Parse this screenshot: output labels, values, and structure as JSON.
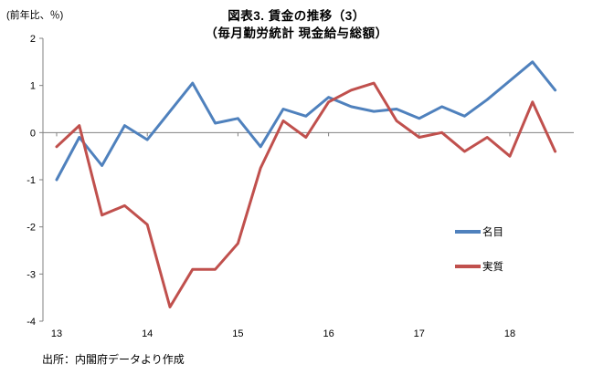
{
  "chart_data": {
    "type": "line",
    "title_line1": "図表3. 賃金の推移（3）",
    "title_line2": "（毎月勤労統計 現金給与総額）",
    "unit_label": "(前年比、％)",
    "source": "出所：内閣府データより作成",
    "x_start_year": 13,
    "x_step_years": 0.25,
    "x_tick_labels": [
      "13",
      "14",
      "15",
      "16",
      "17",
      "18"
    ],
    "y_ticks": [
      2,
      1,
      0,
      -1,
      -2,
      -3,
      -4
    ],
    "ylim": [
      -4,
      2
    ],
    "grid": false,
    "legend_position": "right-middle",
    "axis_color": "#808080",
    "series": [
      {
        "name": "名目",
        "color": "#4F81BD",
        "values": [
          -1.0,
          -0.1,
          -0.7,
          0.15,
          -0.15,
          0.45,
          1.05,
          0.2,
          0.3,
          -0.3,
          0.5,
          0.35,
          0.75,
          0.55,
          0.45,
          0.5,
          0.3,
          0.55,
          0.35,
          0.7,
          1.1,
          1.5,
          0.9
        ]
      },
      {
        "name": "実質",
        "color": "#C0504D",
        "values": [
          -0.3,
          0.15,
          -1.75,
          -1.55,
          -1.95,
          -3.7,
          -2.9,
          -2.9,
          -2.35,
          -0.75,
          0.25,
          -0.1,
          0.65,
          0.9,
          1.05,
          0.25,
          -0.1,
          0.0,
          -0.4,
          -0.1,
          -0.5,
          0.65,
          -0.4
        ]
      }
    ]
  }
}
